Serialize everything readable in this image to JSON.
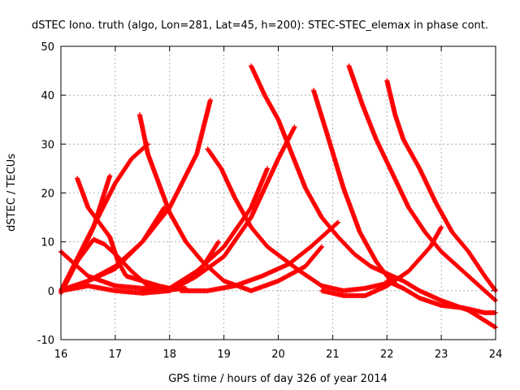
{
  "chart_data": {
    "type": "scatter",
    "title": "dSTEC Iono. truth (algo, Lon=281, Lat=45, h=200): STEC-STEC_elemax in phase cont.",
    "xlabel": "GPS time / hours of day 326 of year 2014",
    "ylabel": "dSTEC  / TECUs",
    "xlim": [
      16,
      24
    ],
    "ylim": [
      -10,
      50
    ],
    "xticks": [
      16,
      17,
      18,
      19,
      20,
      21,
      22,
      23,
      24
    ],
    "yticks": [
      -10,
      0,
      10,
      20,
      30,
      40,
      50
    ],
    "grid": true,
    "marker": "+",
    "color": "#ff0000",
    "series": [
      {
        "x": [
          16.0,
          16.5,
          17.0,
          17.5,
          18.0,
          18.3
        ],
        "y": [
          8,
          3,
          1,
          0.5,
          0.2,
          0.5
        ]
      },
      {
        "x": [
          16.0,
          16.3,
          16.6,
          16.9
        ],
        "y": [
          -0.5,
          6,
          13,
          23.5
        ]
      },
      {
        "x": [
          16.3,
          16.5,
          16.7,
          16.9,
          17.05,
          17.2,
          17.5,
          17.8,
          18.0
        ],
        "y": [
          23,
          17,
          14,
          11,
          6,
          3,
          2,
          1,
          0.5
        ]
      },
      {
        "x": [
          16.0,
          16.3,
          16.6,
          16.8,
          17.0,
          17.3,
          17.6,
          17.9,
          18.2
        ],
        "y": [
          0,
          6,
          10.5,
          9.5,
          7.5,
          4,
          1,
          0,
          0.5
        ]
      },
      {
        "x": [
          16.0,
          16.5,
          17.0,
          17.5,
          18.0,
          18.5,
          18.9
        ],
        "y": [
          0,
          1,
          0,
          -0.5,
          0,
          3,
          10
        ]
      },
      {
        "x": [
          16.0,
          16.5,
          17.0,
          17.3,
          17.6
        ],
        "y": [
          0,
          11,
          22,
          27,
          30
        ]
      },
      {
        "x": [
          17.45,
          17.6,
          17.8,
          18.0,
          18.3,
          18.6,
          19.0,
          19.5,
          20.0,
          20.5,
          20.8
        ],
        "y": [
          36,
          28,
          22,
          16,
          10,
          6,
          2,
          0,
          2,
          5,
          9
        ]
      },
      {
        "x": [
          16.1,
          16.5,
          17.0,
          17.5,
          17.9
        ],
        "y": [
          0.5,
          2,
          5,
          10,
          17
        ]
      },
      {
        "x": [
          16.5,
          17.0,
          17.5,
          18.0,
          18.5,
          18.75
        ],
        "y": [
          2,
          4.5,
          10,
          17,
          28,
          39
        ]
      },
      {
        "x": [
          18.7,
          18.95,
          19.2,
          19.5,
          19.8,
          20.1,
          20.4,
          20.8,
          21.2,
          21.6,
          22.0
        ],
        "y": [
          29,
          25,
          19,
          13,
          9,
          6.5,
          4,
          1,
          0,
          0.5,
          1.5
        ]
      },
      {
        "x": [
          18.0,
          18.5,
          19.0,
          19.5,
          20.0,
          20.3
        ],
        "y": [
          0,
          3,
          7,
          15,
          27,
          33.5
        ]
      },
      {
        "x": [
          17.5,
          18.0,
          18.5,
          19.0,
          19.5,
          19.8
        ],
        "y": [
          0,
          0.5,
          4,
          9,
          17,
          25
        ]
      },
      {
        "x": [
          19.5,
          19.75,
          20.0,
          20.25,
          20.5,
          20.8,
          21.1,
          21.4,
          21.7,
          22.0,
          22.3,
          22.6,
          23.0,
          23.5,
          24.0
        ],
        "y": [
          46,
          40,
          35,
          28,
          21,
          15,
          11,
          7.5,
          5,
          3.5,
          2,
          0,
          -2,
          -4,
          -7.5
        ]
      },
      {
        "x": [
          18.2,
          18.7,
          19.2,
          19.7,
          20.2,
          20.6,
          20.9,
          21.1
        ],
        "y": [
          0,
          0,
          1,
          3,
          5.5,
          9,
          12,
          14
        ]
      },
      {
        "x": [
          20.65,
          20.9,
          21.2,
          21.5,
          21.8,
          22.0,
          22.2
        ],
        "y": [
          41,
          32,
          21,
          12,
          6,
          3,
          1
        ]
      },
      {
        "x": [
          21.3,
          21.55,
          21.8,
          22.1,
          22.4,
          22.7,
          23.0,
          23.3,
          23.6,
          24.0
        ],
        "y": [
          46,
          38,
          31,
          24,
          17,
          12,
          8,
          5,
          2,
          -2
        ]
      },
      {
        "x": [
          22.0,
          22.15,
          22.3,
          22.6,
          22.9,
          23.2,
          23.5,
          23.8,
          24.0
        ],
        "y": [
          43,
          36,
          31,
          25,
          18,
          12,
          8,
          3,
          0
        ]
      },
      {
        "x": [
          20.8,
          21.2,
          21.6,
          22.0,
          22.4,
          22.8,
          23.0
        ],
        "y": [
          0,
          -1,
          -1,
          1,
          4,
          9,
          13
        ]
      },
      {
        "x": [
          22.0,
          22.3,
          22.6,
          23.0,
          23.4,
          23.8,
          24.0
        ],
        "y": [
          2,
          0.5,
          -1.5,
          -3,
          -3.5,
          -4.5,
          -4.5
        ]
      }
    ]
  }
}
